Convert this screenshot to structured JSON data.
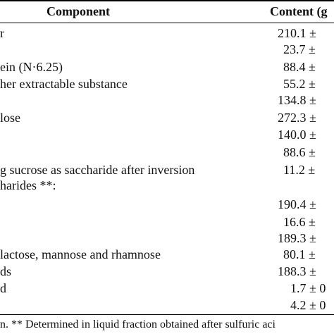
{
  "table": {
    "header": {
      "component": "Component",
      "content": "Content (g"
    },
    "rows": [
      {
        "label": "r",
        "value": "210.1 ±"
      },
      {
        "label": "",
        "value": "23.7 ±"
      },
      {
        "label": "ein (N·6.25)",
        "value": "88.4 ±"
      },
      {
        "label": "her extractable substance",
        "value": "55.2 ±"
      },
      {
        "label": "",
        "value": "134.8 ±"
      },
      {
        "label": "lose",
        "value": "272.3 ±"
      },
      {
        "label": "",
        "value": "140.0 ±"
      },
      {
        "label": "",
        "value": "88.6 ±"
      },
      {
        "label": "g sucrose as saccharide after inversion",
        "value": "11.2 ±"
      },
      {
        "label": "harides **:",
        "value": ""
      },
      {
        "label": "",
        "value": "190.4 ±"
      },
      {
        "label": "",
        "value": "16.6 ±"
      },
      {
        "label": "",
        "value": "189.3 ±"
      },
      {
        "label": "lactose, mannose and rhamnose",
        "value": "80.1 ±"
      },
      {
        "label": "ds",
        "value": "188.3 ±"
      },
      {
        "label": "d",
        "value": "1.7 ± 0"
      },
      {
        "label": "",
        "value": "4.2 ± 0"
      }
    ]
  },
  "footnote": "n. ** Determined in liquid fraction obtained after sulfuric aci"
}
